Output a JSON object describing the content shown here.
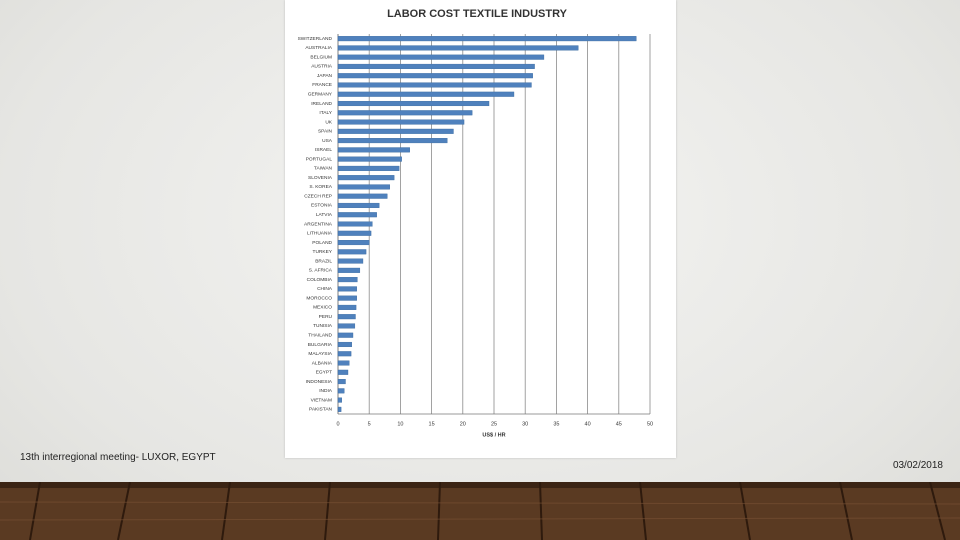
{
  "chart_data": {
    "type": "bar",
    "orientation": "horizontal",
    "title": "LABOR COST TEXTILE INDUSTRY",
    "x_label": "US$ / HR",
    "categories": [
      "SWITZERLAND",
      "AUSTRALIA",
      "BELGIUM",
      "AUSTRIA",
      "JAPAN",
      "FRANCE",
      "GERMANY",
      "IRELAND",
      "ITALY",
      "UK",
      "SPAIN",
      "USA",
      "ISRAEL",
      "PORTUGAL",
      "TAIWAN",
      "SLOVENIA",
      "S. KOREA",
      "CZECH REP",
      "ESTONIA",
      "LATVIA",
      "ARGENTINA",
      "LITHUANIA",
      "POLAND",
      "TURKEY",
      "BRAZIL",
      "S. AFRICA",
      "COLOMBIA",
      "CHINA",
      "MOROCCO",
      "MEXICO",
      "PERU",
      "TUNISIA",
      "THAILAND",
      "BULGARIA",
      "MALAYSIA",
      "ALBANIA",
      "EGYPT",
      "INDONESIA",
      "INDIA",
      "VIETNAM",
      "PAKISTAN"
    ],
    "values": [
      47.8,
      38.5,
      33,
      31.5,
      31.2,
      31,
      28.2,
      24.2,
      21.5,
      20.2,
      18.5,
      17.5,
      11.5,
      10.2,
      9.8,
      9,
      8.3,
      7.9,
      6.6,
      6.2,
      5.5,
      5.3,
      5,
      4.5,
      4,
      3.5,
      3.1,
      3,
      3,
      2.9,
      2.8,
      2.7,
      2.4,
      2.2,
      2.1,
      1.8,
      1.6,
      1.2,
      1,
      0.6,
      0.5
    ],
    "color": "#4f81bd",
    "xlim": [
      0,
      50
    ],
    "xticks": [
      0,
      5,
      10,
      15,
      20,
      25,
      30,
      35,
      40,
      45,
      50
    ],
    "grid": true
  },
  "footer": {
    "left": "13th interregional meeting- LUXOR, EGYPT",
    "right": "03/02/2018"
  }
}
